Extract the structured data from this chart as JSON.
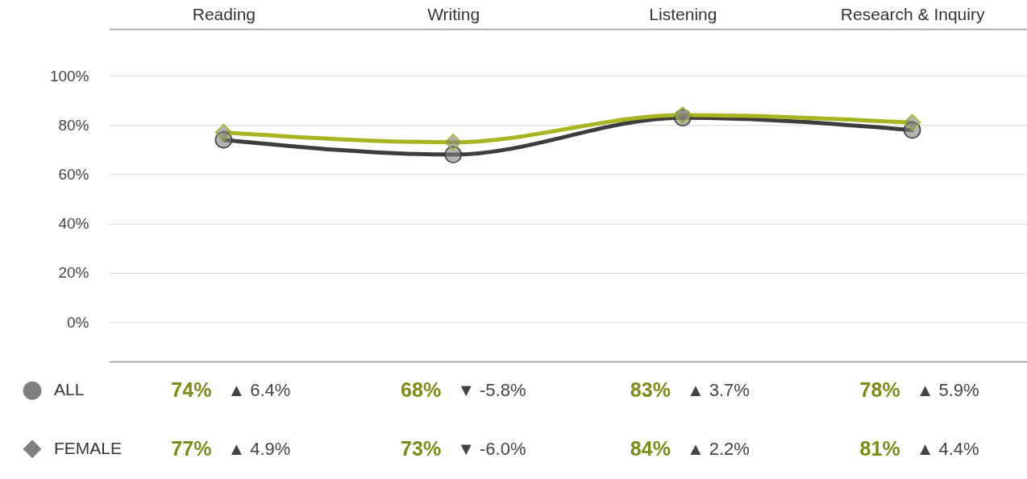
{
  "chart_data": {
    "type": "line",
    "categories": [
      "Reading",
      "Writing",
      "Listening",
      "Research & Inquiry"
    ],
    "series": [
      {
        "name": "ALL",
        "color": "#3d3d3d",
        "marker": "circle",
        "values": [
          74,
          68,
          83,
          78
        ],
        "value_labels": [
          "74%",
          "68%",
          "83%",
          "78%"
        ]
      },
      {
        "name": "FEMALE",
        "color": "#a8b520",
        "marker": "diamond",
        "values": [
          77,
          73,
          84,
          81
        ],
        "value_labels": [
          "77%",
          "73%",
          "84%",
          "81%"
        ]
      }
    ],
    "ylim": [
      -16,
      119
    ],
    "yticks": [
      {
        "value": 0,
        "label": "0%"
      },
      {
        "value": 20,
        "label": "20%"
      },
      {
        "value": 40,
        "label": "40%"
      },
      {
        "value": 60,
        "label": "60%"
      },
      {
        "value": 80,
        "label": "80%"
      },
      {
        "value": 100,
        "label": "100%"
      }
    ],
    "grid": "y",
    "legend": "bottom",
    "annotations": [
      "▲ 6.4%",
      "▼ -5.8%",
      "▲ 3.7%",
      "▲ 5.9%",
      "▲ 4.9%",
      "▼ -6.0%",
      "▲ 2.2%",
      "▲ 4.4%"
    ]
  }
}
